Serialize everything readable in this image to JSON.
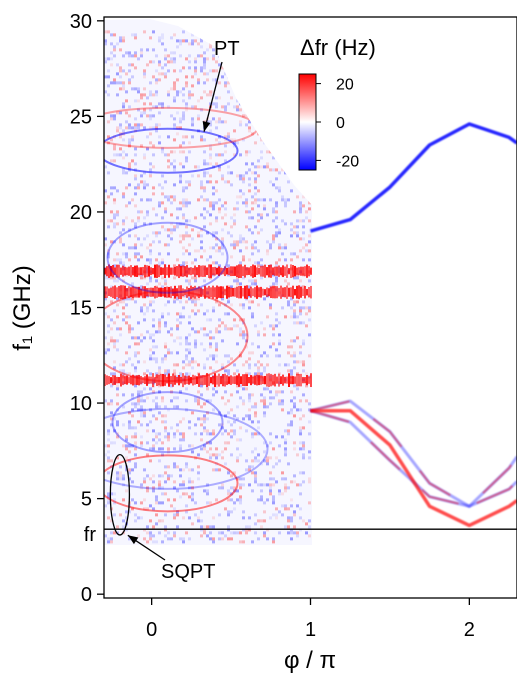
{
  "chart_data": {
    "type": "heatmap",
    "xlabel": "φ / π",
    "ylabel": "f₁ (GHz)",
    "xlim": [
      -0.3,
      2.3
    ],
    "ylim": [
      -0.2,
      30.2
    ],
    "x_ticks": [
      0,
      1,
      2
    ],
    "y_ticks": [
      0,
      5,
      10,
      15,
      20,
      25,
      30
    ],
    "fr_line": {
      "label": "fr",
      "value": 3.4
    },
    "colorbar": {
      "title": "Δfr (Hz)",
      "ticks": [
        20,
        0,
        -20
      ],
      "range": [
        -25,
        25
      ],
      "colors": {
        "negative": "#0000ff",
        "zero": "#ffffff",
        "positive": "#ff0000"
      }
    },
    "measured_region": {
      "x_range": [
        -0.3,
        1.0
      ],
      "y_range": [
        2.8,
        29.5
      ]
    },
    "dense_bands": [
      {
        "y": 15.8,
        "color": "#ff0000"
      },
      {
        "y": 16.9,
        "color": "#ff0000"
      },
      {
        "y": 11.2,
        "color": "#ff0000"
      }
    ],
    "theory_curves": [
      {
        "x": [
          1.0,
          1.25,
          1.5,
          1.75,
          2.0,
          2.25,
          2.3
        ],
        "y": [
          19.0,
          19.6,
          21.3,
          23.5,
          24.6,
          23.9,
          23.6
        ],
        "sign": "negative"
      },
      {
        "x": [
          1.0,
          1.25,
          1.5,
          1.75,
          2.0,
          2.25,
          2.3
        ],
        "y": [
          9.6,
          9.0,
          7.0,
          5.1,
          4.6,
          6.6,
          7.2
        ],
        "sign": "mixed"
      },
      {
        "x": [
          1.0,
          1.25,
          1.5,
          1.75,
          2.0,
          2.25,
          2.3
        ],
        "y": [
          9.6,
          10.1,
          8.5,
          5.8,
          4.6,
          5.5,
          5.9
        ],
        "sign": "mixed"
      },
      {
        "x": [
          1.0,
          1.25,
          1.5,
          1.75,
          2.0,
          2.25,
          2.3
        ],
        "y": [
          9.6,
          9.6,
          7.8,
          4.6,
          3.6,
          4.6,
          4.9
        ],
        "sign": "positive"
      }
    ],
    "annotations": [
      {
        "text": "PT",
        "points_to": [
          0.33,
          24.2
        ]
      },
      {
        "text": "SQPT",
        "points_to": [
          -0.15,
          3.5
        ]
      }
    ],
    "ellipse": {
      "cx": -0.2,
      "cy": 5.2,
      "rx": 0.06,
      "ry": 2.1
    }
  }
}
